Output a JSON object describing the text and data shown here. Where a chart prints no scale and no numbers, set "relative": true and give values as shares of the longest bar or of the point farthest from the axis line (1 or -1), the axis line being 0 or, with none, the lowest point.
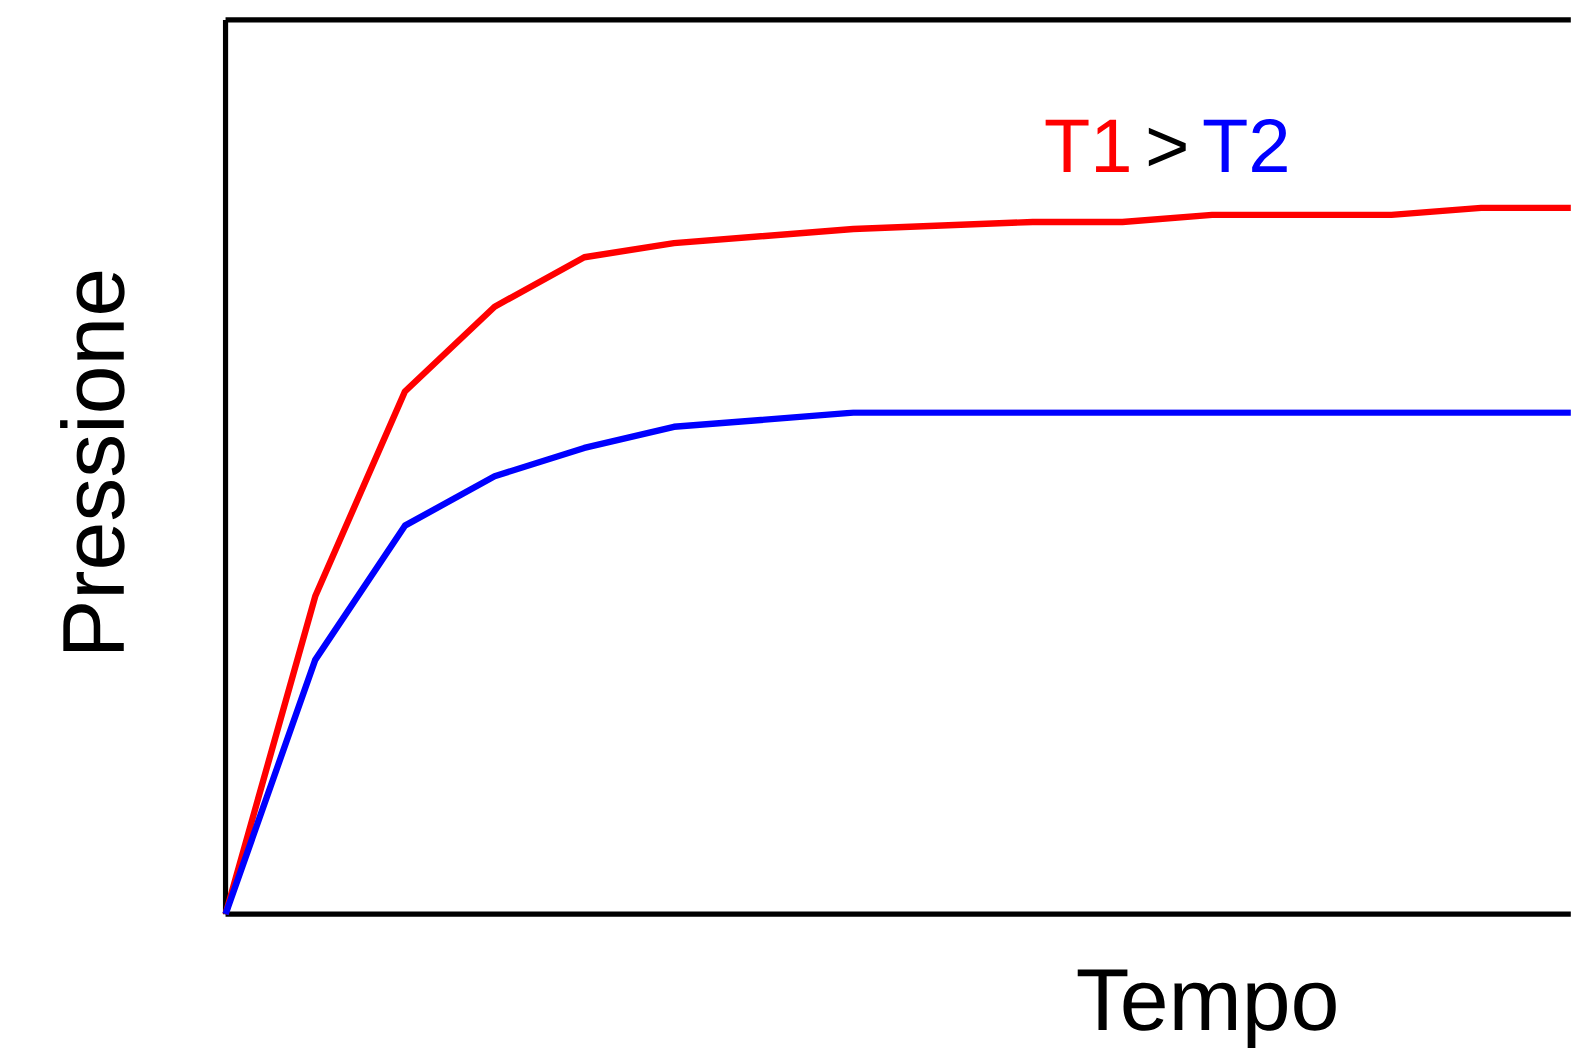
{
  "chart_data": {
    "type": "line",
    "relative": true,
    "xlabel": "Tempo",
    "ylabel": "Pressione",
    "annotations": [
      ">"
    ],
    "categories": [
      null,
      null,
      null,
      null,
      null,
      null,
      null,
      null,
      null,
      null,
      null,
      null,
      null,
      null,
      null,
      null
    ],
    "series": [
      {
        "name": "T1",
        "color": "#ff0000",
        "values": [
          0,
          0.45,
          0.74,
          0.86,
          0.93,
          0.95,
          0.96,
          0.97,
          0.975,
          0.98,
          0.98,
          0.99,
          0.99,
          0.99,
          1.0,
          1.0
        ]
      },
      {
        "name": "T2",
        "color": "#0000ff",
        "values": [
          0,
          0.36,
          0.55,
          0.62,
          0.66,
          0.69,
          0.7,
          0.71,
          0.71,
          0.71,
          0.71,
          0.71,
          0.71,
          0.71,
          0.71,
          0.71
        ]
      }
    ]
  }
}
